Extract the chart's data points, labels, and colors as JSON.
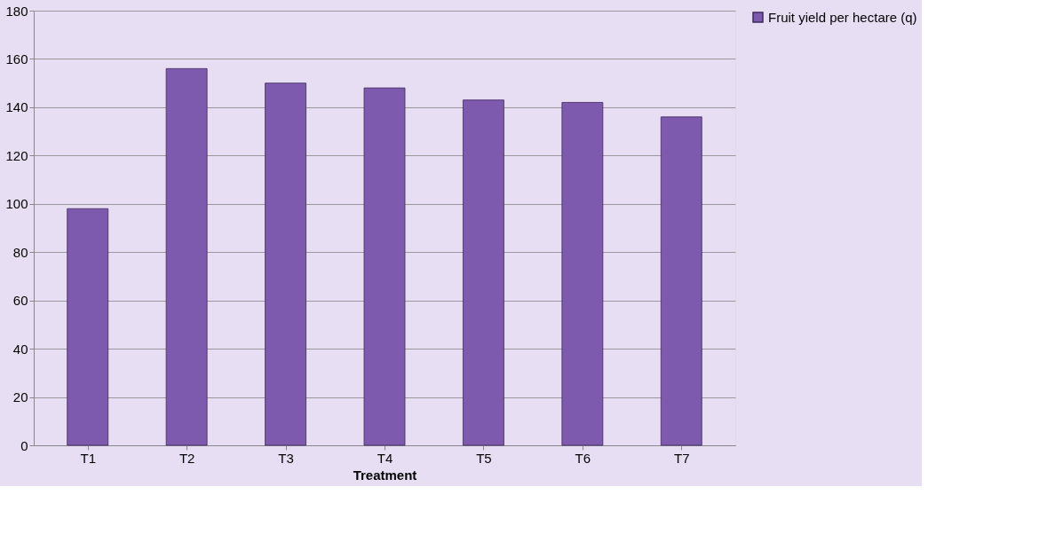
{
  "chart_data": {
    "type": "bar",
    "xlabel": "Treatment",
    "categories": [
      "T1",
      "T2",
      "T3",
      "T4",
      "T5",
      "T6",
      "T7"
    ],
    "series": [
      {
        "name": "Fruit yield per hectare (q)",
        "color": "#7e5aae",
        "values": [
          98,
          156,
          150,
          148,
          143,
          142,
          136
        ]
      }
    ],
    "ylim": [
      0,
      180
    ],
    "yticks": [
      0,
      20,
      40,
      60,
      80,
      100,
      120,
      140,
      160,
      180
    ],
    "grid": "y",
    "legend": "right"
  }
}
